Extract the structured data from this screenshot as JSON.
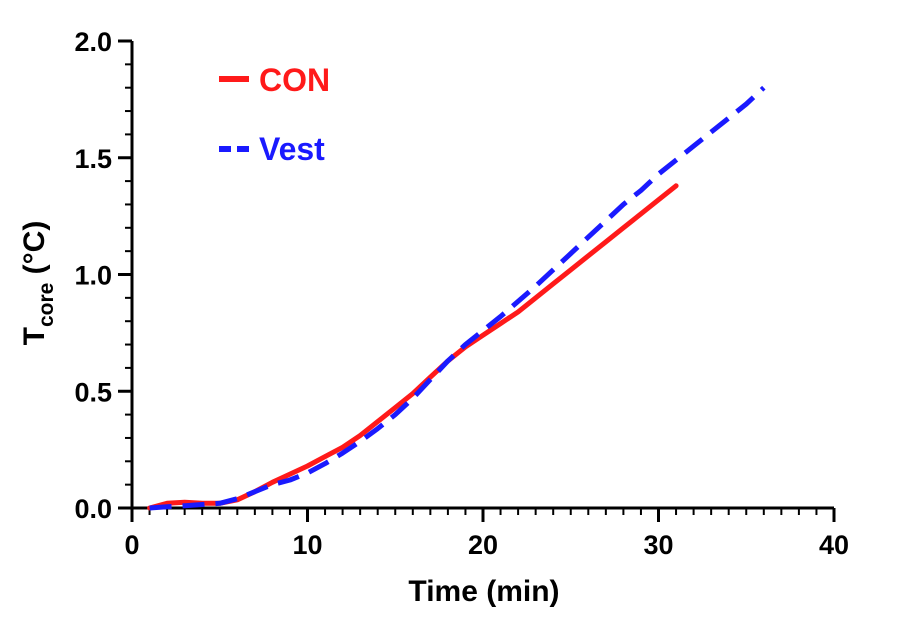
{
  "chart_data": {
    "type": "line",
    "xlabel": "Time (min)",
    "ylabel": {
      "main": "T",
      "subscript": "core",
      "suffix": " (°C)"
    },
    "xlim": [
      0,
      40
    ],
    "ylim": [
      0,
      2.0
    ],
    "x_ticks": [
      {
        "value": 0,
        "label": "0"
      },
      {
        "value": 10,
        "label": "10"
      },
      {
        "value": 20,
        "label": "20"
      },
      {
        "value": 30,
        "label": "30"
      },
      {
        "value": 40,
        "label": "40"
      }
    ],
    "y_ticks": [
      {
        "value": 0,
        "label": "0.0"
      },
      {
        "value": 0.5,
        "label": "0.5"
      },
      {
        "value": 1.0,
        "label": "1.0"
      },
      {
        "value": 1.5,
        "label": "1.5"
      },
      {
        "value": 2.0,
        "label": "2.0"
      }
    ],
    "x_minor_step": 1,
    "y_minor_step": 0.1,
    "grid": false,
    "legend_position": "top-left",
    "series": [
      {
        "name": "CON",
        "color": "#ff1a1a",
        "style": "solid",
        "x": [
          1,
          2,
          3,
          4,
          5,
          6,
          7,
          8,
          9,
          10,
          11,
          12,
          13,
          14,
          15,
          16,
          17,
          18,
          19,
          20,
          21,
          22,
          23,
          24,
          25,
          26,
          27,
          28,
          29,
          30,
          31
        ],
        "y": [
          0.0,
          0.02,
          0.025,
          0.02,
          0.02,
          0.035,
          0.07,
          0.11,
          0.145,
          0.18,
          0.22,
          0.26,
          0.31,
          0.37,
          0.43,
          0.49,
          0.56,
          0.63,
          0.69,
          0.74,
          0.79,
          0.84,
          0.9,
          0.96,
          1.02,
          1.08,
          1.14,
          1.2,
          1.26,
          1.32,
          1.38
        ]
      },
      {
        "name": "Vest",
        "color": "#1a1aff",
        "style": "dashed",
        "x": [
          1,
          2,
          3,
          4,
          5,
          6,
          7,
          8,
          9,
          10,
          11,
          12,
          13,
          14,
          15,
          16,
          17,
          18,
          19,
          20,
          21,
          22,
          23,
          24,
          25,
          26,
          27,
          28,
          29,
          30,
          31,
          32,
          33,
          34,
          35,
          36
        ],
        "y": [
          0.0,
          0.005,
          0.01,
          0.015,
          0.02,
          0.04,
          0.07,
          0.1,
          0.12,
          0.15,
          0.19,
          0.235,
          0.285,
          0.34,
          0.4,
          0.47,
          0.55,
          0.63,
          0.7,
          0.76,
          0.82,
          0.885,
          0.95,
          1.02,
          1.09,
          1.16,
          1.23,
          1.3,
          1.36,
          1.43,
          1.49,
          1.55,
          1.61,
          1.67,
          1.73,
          1.8
        ]
      }
    ]
  }
}
